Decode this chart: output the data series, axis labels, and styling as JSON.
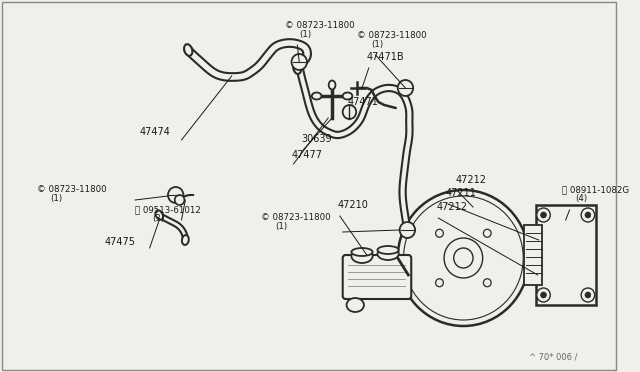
{
  "bg_color": "#f0efea",
  "line_color": "#2a2a2a",
  "text_color": "#1a1a1a",
  "watermark": "^ 70* 006 /",
  "label_fontsize": 7.0,
  "small_fontsize": 6.2
}
